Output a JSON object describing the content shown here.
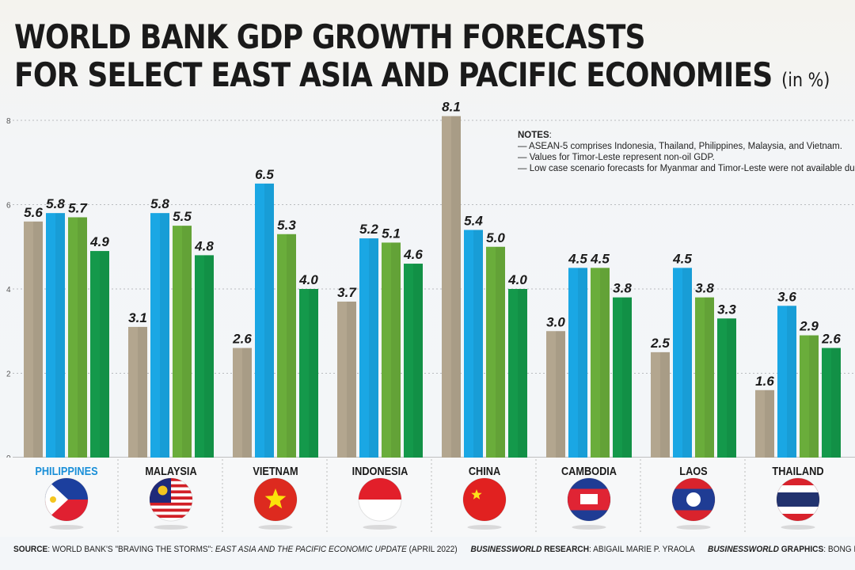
{
  "chart_data": {
    "type": "bar",
    "title_line1": "WORLD BANK GDP GROWTH FORECASTS",
    "title_line2": "FOR SELECT EAST ASIA AND PACIFIC ECONOMIES",
    "unit": "(in %)",
    "categories": [
      "PHILIPPINES",
      "MALAYSIA",
      "VIETNAM",
      "INDONESIA",
      "CHINA",
      "CAMBODIA",
      "LAOS",
      "THAILAND"
    ],
    "series": [
      {
        "color": "#b3a68f",
        "values": [
          5.6,
          3.1,
          2.6,
          3.7,
          8.1,
          3.0,
          2.5,
          1.6
        ]
      },
      {
        "color": "#1aa7e4",
        "values": [
          5.8,
          5.8,
          6.5,
          5.2,
          5.4,
          4.5,
          4.5,
          3.6
        ]
      },
      {
        "color": "#6aad3b",
        "values": [
          5.7,
          5.5,
          5.3,
          5.1,
          5.0,
          4.5,
          3.8,
          2.9
        ]
      },
      {
        "color": "#14994b",
        "values": [
          4.9,
          4.8,
          4.0,
          4.6,
          4.0,
          3.8,
          3.3,
          2.6
        ]
      }
    ],
    "yticks": [
      0,
      2,
      4,
      6,
      8
    ],
    "ylim": [
      0,
      8
    ],
    "grid": true,
    "highlight_category": "PHILIPPINES",
    "highlight_color": "#1a8fd8"
  },
  "notes": {
    "heading": "NOTES",
    "lines": [
      "— ASEAN-5 comprises Indonesia, Thailand, Philippines, Malaysia, and Vietnam.",
      "— Values for Timor-Leste represent non-oil GDP.",
      "— Low case scenario forecasts for Myanmar and Timor-Leste were not available due"
    ]
  },
  "footer": {
    "source_label": "SOURCE",
    "source_text": ": WORLD BANK'S \"BRAVING THE STORMS\": ",
    "source_italic": "EAST ASIA AND THE PACIFIC ECONOMIC UPDATE",
    "source_end": " (APRIL 2022)",
    "research_brand": "BUSINESSWORLD",
    "research_label": " RESEARCH",
    "research_name": ": ABIGAIL MARIE P. YRAOLA",
    "graphics_brand": "BUSINESSWORLD",
    "graphics_label": " GRAPHICS",
    "graphics_name": ": BONG R."
  },
  "flags": [
    "philippines-flag",
    "malaysia-flag",
    "vietnam-flag",
    "indonesia-flag",
    "china-flag",
    "cambodia-flag",
    "laos-flag",
    "thailand-flag"
  ]
}
